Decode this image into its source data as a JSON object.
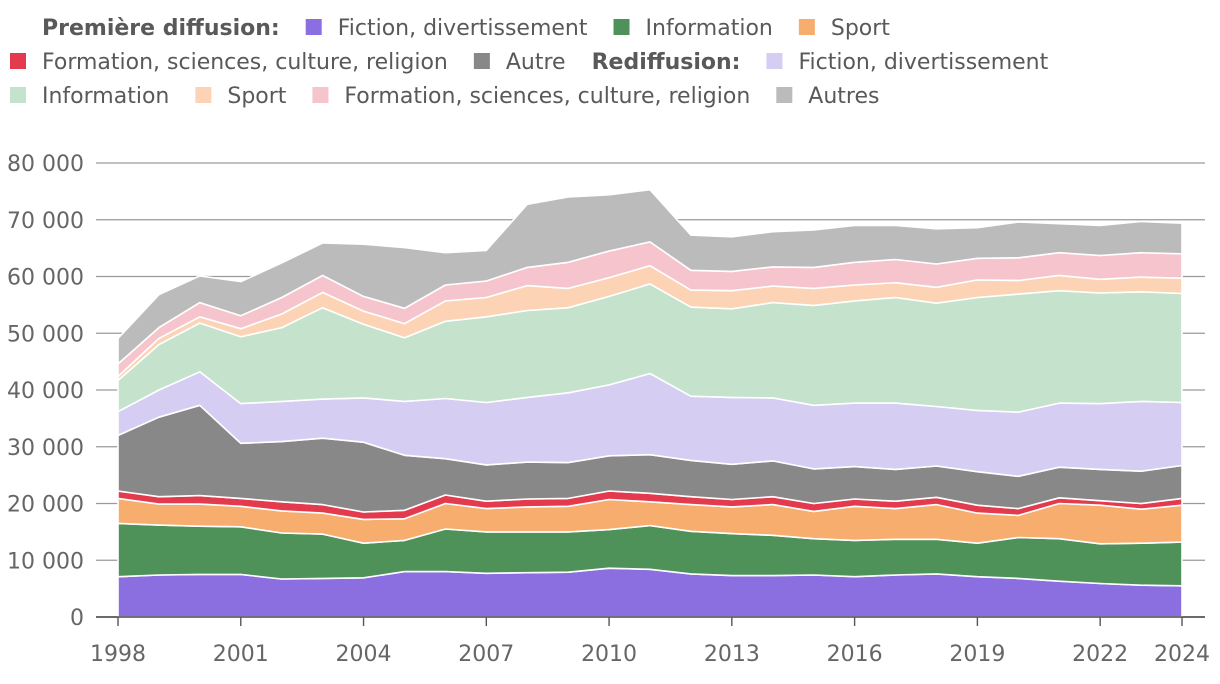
{
  "chart_data": {
    "type": "area",
    "stacked": true,
    "legend": {
      "placement": "top",
      "groups": [
        {
          "heading": "Première diffusion:",
          "entries": [
            {
              "series": 0,
              "label": "Fiction, divertissement"
            },
            {
              "series": 1,
              "label": "Information"
            },
            {
              "series": 2,
              "label": "Sport"
            },
            {
              "series": 3,
              "label": "Formation, sciences, culture, religion"
            },
            {
              "series": 4,
              "label": "Autre"
            }
          ]
        },
        {
          "heading": "Rediffusion:",
          "entries": [
            {
              "series": 5,
              "label": "Fiction, divertissement"
            },
            {
              "series": 6,
              "label": "Information"
            },
            {
              "series": 7,
              "label": "Sport"
            },
            {
              "series": 8,
              "label": "Formation, sciences, culture, religion"
            },
            {
              "series": 9,
              "label": "Autres"
            }
          ]
        }
      ]
    },
    "x": [
      1998,
      1999,
      2000,
      2001,
      2002,
      2003,
      2004,
      2005,
      2006,
      2007,
      2008,
      2009,
      2010,
      2011,
      2012,
      2013,
      2014,
      2015,
      2016,
      2017,
      2018,
      2019,
      2020,
      2021,
      2022,
      2023,
      2024
    ],
    "x_ticks": [
      "1998",
      "2001",
      "2004",
      "2007",
      "2010",
      "2013",
      "2016",
      "2019",
      "2022",
      "2024"
    ],
    "y_ticks": [
      "0",
      "10 000",
      "20 000",
      "30 000",
      "40 000",
      "50 000",
      "60 000",
      "70 000",
      "80 000"
    ],
    "ylim": [
      0,
      80000
    ],
    "grid": "horizontal",
    "series": [
      {
        "color": "#8b6fe0",
        "values": [
          7100,
          7400,
          7500,
          7500,
          6700,
          6800,
          6900,
          8000,
          8000,
          7700,
          7800,
          7900,
          8600,
          8400,
          7600,
          7300,
          7300,
          7400,
          7100,
          7400,
          7600,
          7100,
          6800,
          6300,
          5900,
          5600,
          5500
        ]
      },
      {
        "color": "#4e9159",
        "values": [
          9400,
          8800,
          8500,
          8400,
          8100,
          7800,
          6100,
          5500,
          7500,
          7300,
          7200,
          7100,
          6800,
          7700,
          7500,
          7400,
          7100,
          6400,
          6400,
          6300,
          6100,
          5900,
          7200,
          7500,
          7000,
          7400,
          7700
        ]
      },
      {
        "color": "#f6ad6e",
        "values": [
          4400,
          3700,
          3900,
          3600,
          3900,
          3700,
          4200,
          3800,
          4500,
          4100,
          4400,
          4500,
          5300,
          4200,
          4700,
          4700,
          5400,
          4800,
          6000,
          5400,
          6100,
          5300,
          3900,
          6200,
          6800,
          6000,
          6500
        ]
      },
      {
        "color": "#e33a4e",
        "values": [
          1300,
          1300,
          1500,
          1400,
          1600,
          1500,
          1300,
          1500,
          1500,
          1300,
          1400,
          1400,
          1500,
          1500,
          1400,
          1300,
          1400,
          1400,
          1300,
          1300,
          1300,
          1400,
          1200,
          1000,
          800,
          1000,
          1200
        ]
      },
      {
        "color": "#888888",
        "values": [
          9800,
          14000,
          15900,
          9700,
          10600,
          11700,
          12300,
          9700,
          6400,
          6400,
          6500,
          6300,
          6200,
          6800,
          6400,
          6200,
          6300,
          6100,
          5700,
          5600,
          5500,
          5900,
          5700,
          5400,
          5500,
          5700,
          5800
        ]
      },
      {
        "color": "#d6cdf3",
        "values": [
          4200,
          4800,
          5900,
          7000,
          7100,
          6900,
          7800,
          9500,
          10600,
          11000,
          11400,
          12300,
          12500,
          14300,
          11300,
          11800,
          11100,
          11200,
          11200,
          11700,
          10500,
          10800,
          11300,
          11300,
          11600,
          12300,
          11100
        ]
      },
      {
        "color": "#c4e2cc",
        "values": [
          5500,
          8000,
          8600,
          11800,
          13000,
          16100,
          13000,
          11200,
          13600,
          15100,
          15300,
          15000,
          15600,
          15800,
          15700,
          15600,
          16800,
          17600,
          18000,
          18600,
          18200,
          19900,
          20800,
          19800,
          19500,
          19300,
          19200
        ]
      },
      {
        "color": "#fcd3b5",
        "values": [
          700,
          1100,
          1100,
          1400,
          2400,
          2700,
          2300,
          2500,
          3600,
          3400,
          4400,
          3400,
          3300,
          3200,
          3000,
          3200,
          2900,
          3000,
          2800,
          2600,
          2800,
          3100,
          2400,
          2700,
          2400,
          2600,
          2700
        ]
      },
      {
        "color": "#f5c4cc",
        "values": [
          2200,
          1900,
          2500,
          2300,
          2900,
          3000,
          2600,
          2700,
          2800,
          2900,
          3200,
          4600,
          4700,
          4200,
          3500,
          3400,
          3400,
          3700,
          4000,
          4100,
          4100,
          3800,
          4000,
          4000,
          4200,
          4300,
          4300
        ]
      },
      {
        "color": "#bbbbbb",
        "values": [
          4500,
          5800,
          4700,
          6000,
          6100,
          5700,
          9200,
          10700,
          5700,
          5400,
          11100,
          11500,
          9900,
          9200,
          6200,
          6100,
          6200,
          6600,
          6500,
          6000,
          6200,
          5400,
          6300,
          5100,
          5300,
          5500,
          5400
        ]
      }
    ]
  }
}
